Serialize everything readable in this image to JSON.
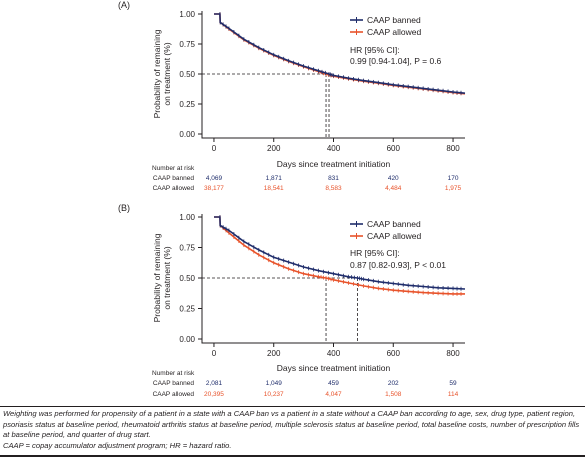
{
  "colors": {
    "banned": "#1f2d6b",
    "allowed": "#e8532b",
    "axis": "#231f20",
    "text": "#231f20"
  },
  "chart_data": [
    {
      "type": "line",
      "panel": "(A)",
      "xlabel": "Days since treatment initiation",
      "ylabel": "Probability of remaining on treatment (%)",
      "ylabel_lines": [
        "Probability of remaining",
        "on treatment (%)"
      ],
      "xlim": [
        -40,
        840
      ],
      "ylim": [
        0,
        1
      ],
      "xticks": [
        "0",
        "200",
        "400",
        "600",
        "800"
      ],
      "yticks": [
        "0.00",
        "0.25",
        "0.50",
        "0.75",
        "1.00"
      ],
      "legend_position": "top-right",
      "series": [
        {
          "name": "CAAP banned",
          "x": [
            0,
            20,
            21,
            50,
            100,
            150,
            200,
            250,
            300,
            350,
            385,
            400,
            450,
            500,
            550,
            600,
            650,
            700,
            750,
            800,
            840
          ],
          "y": [
            1.0,
            1.0,
            0.93,
            0.88,
            0.79,
            0.72,
            0.66,
            0.61,
            0.566,
            0.527,
            0.5,
            0.488,
            0.465,
            0.445,
            0.428,
            0.41,
            0.395,
            0.38,
            0.365,
            0.35,
            0.34
          ]
        },
        {
          "name": "CAAP allowed",
          "x": [
            0,
            20,
            21,
            50,
            100,
            150,
            200,
            250,
            300,
            350,
            375,
            400,
            450,
            500,
            550,
            600,
            650,
            700,
            750,
            800,
            840
          ],
          "y": [
            1.0,
            1.0,
            0.93,
            0.875,
            0.785,
            0.715,
            0.655,
            0.605,
            0.56,
            0.52,
            0.5,
            0.482,
            0.46,
            0.44,
            0.423,
            0.405,
            0.39,
            0.375,
            0.36,
            0.345,
            0.335
          ]
        }
      ],
      "annotations": [
        "HR [95% CI]:",
        "0.99 [0.94-1.04], P = 0.6"
      ],
      "median_lines_x": [
        375,
        385
      ],
      "median_y": 0.5,
      "risk_table": {
        "title": "Number at risk",
        "rows": [
          {
            "label": "CAAP banned",
            "values": [
              "4,069",
              "1,871",
              "831",
              "420",
              "170"
            ]
          },
          {
            "label": "CAAP allowed",
            "values": [
              "38,177",
              "18,541",
              "8,583",
              "4,484",
              "1,975"
            ]
          }
        ]
      }
    },
    {
      "type": "line",
      "panel": "(B)",
      "xlabel": "Days since treatment initiation",
      "ylabel": "Probability of remaining on treatment (%)",
      "ylabel_lines": [
        "Probability of remaining",
        "on treatment (%)"
      ],
      "xlim": [
        -40,
        840
      ],
      "ylim": [
        0,
        1
      ],
      "xticks": [
        "0",
        "200",
        "400",
        "600",
        "800"
      ],
      "yticks": [
        "0.00",
        "0.25",
        "0.50",
        "0.75",
        "1.00"
      ],
      "legend_position": "top-right",
      "series": [
        {
          "name": "CAAP banned",
          "x": [
            0,
            20,
            21,
            50,
            100,
            150,
            200,
            250,
            300,
            350,
            400,
            450,
            480,
            500,
            550,
            600,
            650,
            700,
            750,
            800,
            840
          ],
          "y": [
            1.0,
            1.0,
            0.93,
            0.89,
            0.8,
            0.73,
            0.67,
            0.63,
            0.59,
            0.56,
            0.535,
            0.51,
            0.5,
            0.49,
            0.47,
            0.455,
            0.44,
            0.43,
            0.42,
            0.415,
            0.41
          ]
        },
        {
          "name": "CAAP allowed",
          "x": [
            0,
            20,
            21,
            50,
            100,
            150,
            200,
            250,
            300,
            350,
            375,
            400,
            450,
            500,
            550,
            600,
            650,
            700,
            750,
            800,
            840
          ],
          "y": [
            1.0,
            1.0,
            0.93,
            0.87,
            0.77,
            0.69,
            0.625,
            0.575,
            0.535,
            0.51,
            0.5,
            0.485,
            0.46,
            0.435,
            0.415,
            0.4,
            0.39,
            0.38,
            0.375,
            0.37,
            0.37
          ]
        }
      ],
      "annotations": [
        "HR [95% CI]:",
        "0.87 [0.82-0.93], P < 0.01"
      ],
      "median_lines_x": [
        375,
        480
      ],
      "median_y": 0.5,
      "risk_table": {
        "title": "Number at risk",
        "rows": [
          {
            "label": "CAAP banned",
            "values": [
              "2,081",
              "1,049",
              "459",
              "202",
              "59"
            ]
          },
          {
            "label": "CAAP allowed",
            "values": [
              "20,395",
              "10,237",
              "4,047",
              "1,508",
              "114"
            ]
          }
        ]
      }
    }
  ],
  "footnote": {
    "line1": "Weighting was performed for propensity of a patient in a state with a CAAP ban vs a patient in a state without a CAAP ban according to age, sex, drug type, patient region, psoriasis status at baseline period, rheumatoid arthritis status at baseline period, multiple sclerosis status at baseline period, total baseline costs, number of prescription fills at baseline period, and quarter of drug start.",
    "line2": "CAAP = copay accumulator adjustment program; HR = hazard ratio."
  }
}
